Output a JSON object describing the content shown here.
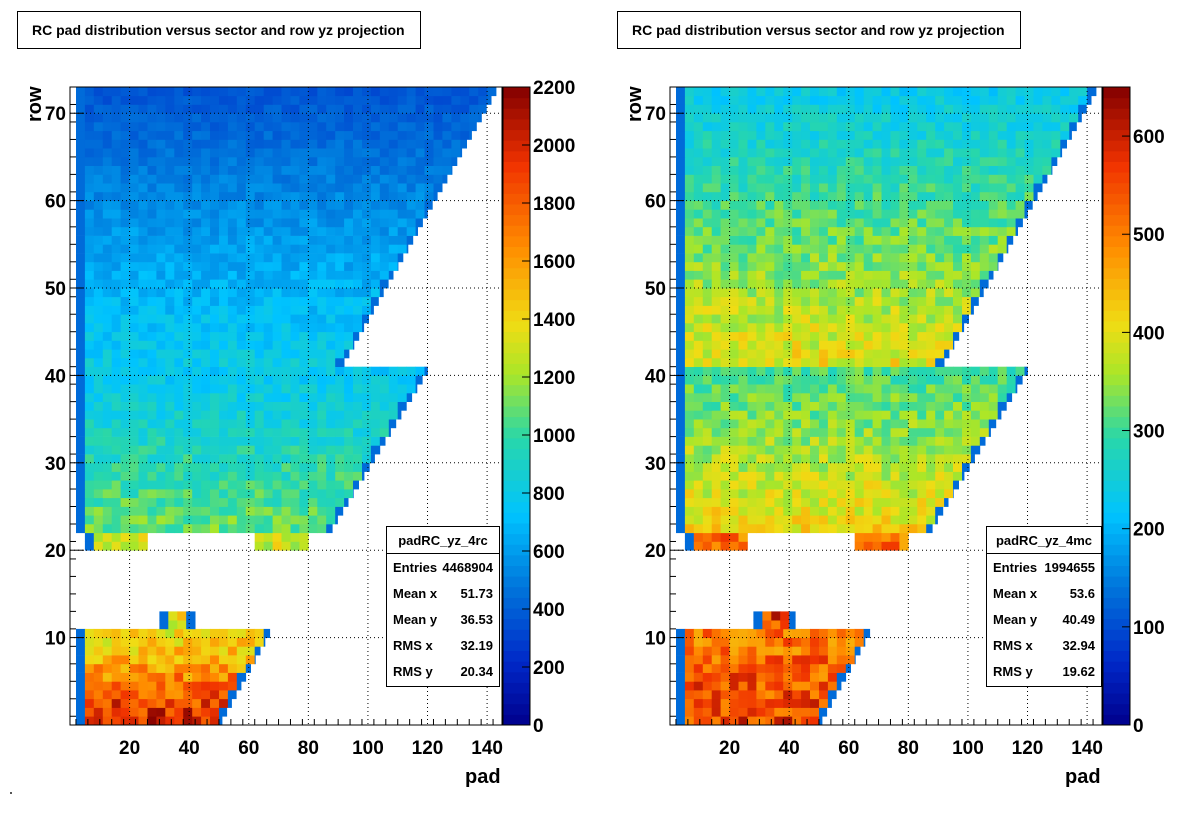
{
  "canvas_background": "#ffffff",
  "chart_data": [
    {
      "type": "heatmap",
      "name": "padRC_yz_4rc",
      "title": "RC pad distribution versus sector and row yz projection",
      "xlabel": "pad",
      "ylabel": "row",
      "xlim": [
        0,
        145
      ],
      "ylim": [
        0,
        73
      ],
      "x_ticks": [
        20,
        40,
        60,
        80,
        100,
        120,
        140
      ],
      "y_ticks": [
        10,
        20,
        30,
        40,
        50,
        60,
        70
      ],
      "colorbar": {
        "min": 0,
        "max": 2200,
        "ticks": [
          0,
          200,
          400,
          600,
          800,
          1000,
          1200,
          1400,
          1600,
          1800,
          2000,
          2200
        ],
        "palette": "rainbow"
      },
      "grid": true,
      "stats": {
        "name": "padRC_yz_4rc",
        "rows": [
          {
            "label": "Entries",
            "value": "4468904"
          },
          {
            "label": "Mean x",
            "value": "51.73"
          },
          {
            "label": "Mean y",
            "value": "36.53"
          },
          {
            "label": "RMS x",
            "value": "32.19"
          },
          {
            "label": "RMS y",
            "value": "20.34"
          }
        ]
      },
      "regions": [
        {
          "rows": [
            0,
            11
          ],
          "pad_start": 2,
          "pad_end_at_row0": 51,
          "pad_end_at_row_top": 67,
          "level_low": 1300,
          "level_high": 2000
        },
        {
          "rows": [
            11,
            13
          ],
          "pad_start": 30,
          "pad_end": 42,
          "level": 1350
        },
        {
          "rows": [
            20,
            22
          ],
          "pad_start": 5,
          "pad_end": 82,
          "level": 1300,
          "gaps": [
            [
              24,
              62
            ],
            [
              79,
              82
            ]
          ]
        },
        {
          "rows": [
            22,
            41
          ],
          "pad_start": 2,
          "pad_end_at_row0": 88,
          "pad_end_at_row_top": 120,
          "level_low": 750,
          "level_high": 1100
        },
        {
          "rows": [
            41,
            73
          ],
          "pad_start": 2,
          "pad_end_at_row0": 92,
          "pad_end_at_row_top": 143,
          "level_low": 350,
          "level_high": 800
        }
      ]
    },
    {
      "type": "heatmap",
      "name": "padRC_yz_4mc",
      "title": "RC pad distribution versus sector and row yz projection",
      "xlabel": "pad",
      "ylabel": "row",
      "xlim": [
        0,
        145
      ],
      "ylim": [
        0,
        73
      ],
      "x_ticks": [
        20,
        40,
        60,
        80,
        100,
        120,
        140
      ],
      "y_ticks": [
        10,
        20,
        30,
        40,
        50,
        60,
        70
      ],
      "colorbar": {
        "min": 0,
        "max": 650,
        "ticks": [
          0,
          100,
          200,
          300,
          400,
          500,
          600
        ],
        "palette": "rainbow"
      },
      "grid": true,
      "stats": {
        "name": "padRC_yz_4mc",
        "rows": [
          {
            "label": "Entries",
            "value": "1994655"
          },
          {
            "label": "Mean x",
            "value": "53.6"
          },
          {
            "label": "Mean y",
            "value": "40.49"
          },
          {
            "label": "RMS x",
            "value": "32.94"
          },
          {
            "label": "RMS y",
            "value": "19.62"
          }
        ]
      },
      "regions": [
        {
          "rows": [
            0,
            11
          ],
          "pad_start": 2,
          "pad_end_at_row0": 51,
          "pad_end_at_row_top": 67,
          "level_low": 500,
          "level_high": 560
        },
        {
          "rows": [
            11,
            13
          ],
          "pad_start": 28,
          "pad_end": 42,
          "level": 560
        },
        {
          "rows": [
            20,
            22
          ],
          "pad_start": 5,
          "pad_end": 82,
          "level": 520,
          "gaps": [
            [
              24,
              62
            ],
            [
              79,
              82
            ]
          ]
        },
        {
          "rows": [
            22,
            41
          ],
          "pad_start": 2,
          "pad_end_at_row0": 88,
          "pad_end_at_row_top": 120,
          "level_low": 300,
          "level_high": 410
        },
        {
          "rows": [
            41,
            73
          ],
          "pad_start": 2,
          "pad_end_at_row0": 92,
          "pad_end_at_row_top": 143,
          "level_low": 230,
          "level_high": 400
        }
      ]
    }
  ]
}
